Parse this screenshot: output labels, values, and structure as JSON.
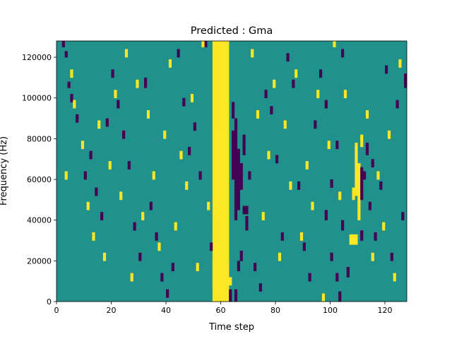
{
  "chart_data": {
    "type": "heatmap",
    "title": "Predicted : Gma",
    "xlabel": "Time step",
    "ylabel": "Frequency (Hz)",
    "xlim": [
      0,
      128
    ],
    "ylim": [
      0,
      128000
    ],
    "x_ticks": [
      0,
      20,
      40,
      60,
      80,
      100,
      120
    ],
    "y_ticks": [
      0,
      20000,
      40000,
      60000,
      80000,
      100000,
      120000
    ],
    "x_tick_labels": [
      "0",
      "20",
      "40",
      "60",
      "80",
      "100",
      "120"
    ],
    "y_tick_labels": [
      "0",
      "20000",
      "40000",
      "60000",
      "80000",
      "100000",
      "120000"
    ],
    "n_time_steps": 128,
    "n_freq_bins": 128,
    "freq_bin_width_hz": 1000,
    "colormap": "viridis",
    "levels": [
      0,
      1,
      2
    ],
    "level_colors": [
      "#440154",
      "#21918c",
      "#fde725"
    ],
    "background_level": 1,
    "grid": false,
    "legend": false,
    "cells_note": "each entry: [time_start, time_end, freq_start_hz, freq_end_hz, level]; cells not listed are background level",
    "cells": [
      [
        57,
        58,
        0,
        128000,
        2
      ],
      [
        58,
        59,
        0,
        128000,
        2
      ],
      [
        59,
        60,
        0,
        128000,
        2
      ],
      [
        60,
        61,
        0,
        128000,
        2
      ],
      [
        61,
        62,
        0,
        128000,
        2
      ],
      [
        62,
        63,
        0,
        128000,
        2
      ],
      [
        58,
        62,
        3000,
        30000,
        2
      ],
      [
        58,
        62,
        40000,
        86000,
        2
      ],
      [
        57,
        63,
        8000,
        20000,
        2
      ],
      [
        58,
        59,
        66000,
        86000,
        2
      ],
      [
        61,
        62,
        40000,
        66000,
        2
      ],
      [
        63,
        64,
        8000,
        12000,
        2
      ],
      [
        109,
        110,
        52000,
        78000,
        2
      ],
      [
        110,
        111,
        40000,
        68000,
        2
      ],
      [
        108,
        109,
        50000,
        56000,
        2
      ],
      [
        107,
        110,
        28000,
        33000,
        2
      ],
      [
        111,
        112,
        76000,
        82000,
        2
      ],
      [
        64,
        65,
        60000,
        84000,
        0
      ],
      [
        65,
        66,
        40000,
        90000,
        0
      ],
      [
        66,
        67,
        45000,
        68000,
        0
      ],
      [
        67,
        68,
        55000,
        68000,
        0
      ],
      [
        64,
        65,
        90000,
        98000,
        0
      ],
      [
        63,
        64,
        0,
        6000,
        0
      ],
      [
        65,
        66,
        0,
        6000,
        0
      ],
      [
        66,
        67,
        15000,
        20000,
        0
      ],
      [
        69,
        70,
        35000,
        42000,
        0
      ],
      [
        68,
        70,
        43000,
        47000,
        0
      ],
      [
        67,
        68,
        20000,
        25000,
        0
      ],
      [
        66,
        67,
        68000,
        75000,
        0
      ],
      [
        68,
        69,
        72000,
        82000,
        0
      ],
      [
        70,
        71,
        60000,
        64000,
        0
      ],
      [
        111,
        112,
        50000,
        66000,
        0
      ],
      [
        112,
        113,
        60000,
        64000,
        0
      ],
      [
        111,
        112,
        30000,
        35000,
        0
      ],
      [
        113,
        114,
        72000,
        78000,
        0
      ],
      [
        115,
        116,
        66000,
        70000,
        0
      ],
      [
        106,
        107,
        12000,
        17000,
        0
      ],
      [
        98,
        99,
        40000,
        45000,
        0
      ],
      [
        100,
        101,
        56000,
        60000,
        0
      ],
      [
        103,
        104,
        0,
        5000,
        0
      ],
      [
        104,
        105,
        35000,
        40000,
        0
      ],
      [
        102,
        103,
        10000,
        14000,
        0
      ],
      [
        2,
        3,
        125000,
        128000,
        0
      ],
      [
        3,
        4,
        120000,
        123000,
        0
      ],
      [
        4,
        5,
        105000,
        108000,
        0
      ],
      [
        5,
        6,
        98000,
        102000,
        0
      ],
      [
        7,
        8,
        88000,
        92000,
        0
      ],
      [
        10,
        11,
        60000,
        64000,
        0
      ],
      [
        12,
        13,
        70000,
        74000,
        0
      ],
      [
        14,
        15,
        52000,
        56000,
        0
      ],
      [
        16,
        17,
        40000,
        44000,
        0
      ],
      [
        18,
        19,
        86000,
        90000,
        0
      ],
      [
        20,
        21,
        110000,
        114000,
        0
      ],
      [
        22,
        23,
        95000,
        99000,
        0
      ],
      [
        24,
        25,
        80000,
        84000,
        0
      ],
      [
        26,
        27,
        65000,
        69000,
        0
      ],
      [
        28,
        29,
        35000,
        39000,
        0
      ],
      [
        30,
        31,
        20000,
        24000,
        0
      ],
      [
        32,
        33,
        105000,
        110000,
        0
      ],
      [
        34,
        35,
        45000,
        49000,
        0
      ],
      [
        36,
        37,
        30000,
        34000,
        0
      ],
      [
        38,
        39,
        10000,
        14000,
        0
      ],
      [
        40,
        41,
        2000,
        6000,
        0
      ],
      [
        42,
        43,
        15000,
        19000,
        0
      ],
      [
        44,
        45,
        120000,
        124000,
        0
      ],
      [
        46,
        47,
        96000,
        100000,
        0
      ],
      [
        48,
        49,
        72000,
        76000,
        0
      ],
      [
        50,
        51,
        84000,
        88000,
        0
      ],
      [
        52,
        53,
        60000,
        64000,
        0
      ],
      [
        54,
        55,
        125000,
        128000,
        0
      ],
      [
        56,
        57,
        25000,
        29000,
        0
      ],
      [
        72,
        73,
        15000,
        19000,
        0
      ],
      [
        74,
        75,
        5000,
        9000,
        0
      ],
      [
        76,
        77,
        100000,
        104000,
        0
      ],
      [
        78,
        79,
        92000,
        96000,
        0
      ],
      [
        80,
        81,
        68000,
        72000,
        0
      ],
      [
        82,
        83,
        30000,
        34000,
        0
      ],
      [
        84,
        85,
        118000,
        122000,
        0
      ],
      [
        86,
        87,
        105000,
        109000,
        0
      ],
      [
        88,
        89,
        55000,
        59000,
        0
      ],
      [
        90,
        91,
        25000,
        29000,
        0
      ],
      [
        92,
        93,
        10000,
        14000,
        0
      ],
      [
        94,
        95,
        85000,
        89000,
        0
      ],
      [
        96,
        97,
        110000,
        114000,
        0
      ],
      [
        98,
        99,
        95000,
        99000,
        0
      ],
      [
        100,
        101,
        20000,
        24000,
        0
      ],
      [
        102,
        103,
        75000,
        79000,
        0
      ],
      [
        104,
        105,
        120000,
        124000,
        0
      ],
      [
        114,
        115,
        45000,
        49000,
        0
      ],
      [
        116,
        117,
        30000,
        34000,
        0
      ],
      [
        118,
        119,
        55000,
        59000,
        0
      ],
      [
        120,
        121,
        112000,
        116000,
        0
      ],
      [
        122,
        123,
        20000,
        24000,
        0
      ],
      [
        124,
        125,
        95000,
        99000,
        0
      ],
      [
        126,
        127,
        40000,
        44000,
        0
      ],
      [
        127,
        128,
        105000,
        112000,
        0
      ],
      [
        3,
        4,
        60000,
        64000,
        2
      ],
      [
        5,
        6,
        110000,
        114000,
        2
      ],
      [
        6,
        7,
        95000,
        99000,
        2
      ],
      [
        9,
        10,
        75000,
        79000,
        2
      ],
      [
        11,
        12,
        45000,
        49000,
        2
      ],
      [
        13,
        14,
        30000,
        34000,
        2
      ],
      [
        15,
        16,
        85000,
        89000,
        2
      ],
      [
        17,
        18,
        20000,
        24000,
        2
      ],
      [
        19,
        20,
        65000,
        69000,
        2
      ],
      [
        21,
        22,
        100000,
        104000,
        2
      ],
      [
        23,
        24,
        50000,
        54000,
        2
      ],
      [
        25,
        26,
        120000,
        124000,
        2
      ],
      [
        27,
        28,
        10000,
        14000,
        2
      ],
      [
        29,
        30,
        105000,
        109000,
        2
      ],
      [
        31,
        32,
        40000,
        44000,
        2
      ],
      [
        33,
        34,
        90000,
        94000,
        2
      ],
      [
        35,
        36,
        60000,
        64000,
        2
      ],
      [
        37,
        38,
        25000,
        29000,
        2
      ],
      [
        39,
        40,
        80000,
        84000,
        2
      ],
      [
        41,
        42,
        115000,
        119000,
        2
      ],
      [
        43,
        44,
        35000,
        39000,
        2
      ],
      [
        45,
        46,
        70000,
        74000,
        2
      ],
      [
        47,
        48,
        55000,
        59000,
        2
      ],
      [
        49,
        50,
        98000,
        102000,
        2
      ],
      [
        51,
        52,
        15000,
        19000,
        2
      ],
      [
        53,
        54,
        125000,
        128000,
        2
      ],
      [
        55,
        56,
        45000,
        49000,
        2
      ],
      [
        71,
        72,
        120000,
        124000,
        2
      ],
      [
        73,
        74,
        90000,
        94000,
        2
      ],
      [
        75,
        76,
        40000,
        44000,
        2
      ],
      [
        77,
        78,
        70000,
        74000,
        2
      ],
      [
        79,
        80,
        105000,
        109000,
        2
      ],
      [
        81,
        82,
        20000,
        24000,
        2
      ],
      [
        83,
        84,
        85000,
        89000,
        2
      ],
      [
        85,
        86,
        55000,
        59000,
        2
      ],
      [
        87,
        88,
        110000,
        114000,
        2
      ],
      [
        89,
        90,
        30000,
        34000,
        2
      ],
      [
        91,
        92,
        65000,
        69000,
        2
      ],
      [
        93,
        94,
        45000,
        49000,
        2
      ],
      [
        95,
        96,
        100000,
        104000,
        2
      ],
      [
        97,
        98,
        0,
        4000,
        2
      ],
      [
        99,
        100,
        75000,
        79000,
        2
      ],
      [
        101,
        102,
        125000,
        128000,
        2
      ],
      [
        103,
        104,
        50000,
        54000,
        2
      ],
      [
        105,
        106,
        100000,
        104000,
        2
      ],
      [
        113,
        114,
        90000,
        94000,
        2
      ],
      [
        115,
        116,
        20000,
        24000,
        2
      ],
      [
        117,
        118,
        60000,
        64000,
        2
      ],
      [
        119,
        120,
        35000,
        39000,
        2
      ],
      [
        121,
        122,
        80000,
        84000,
        2
      ],
      [
        123,
        124,
        10000,
        14000,
        2
      ],
      [
        125,
        126,
        115000,
        119000,
        2
      ]
    ]
  }
}
